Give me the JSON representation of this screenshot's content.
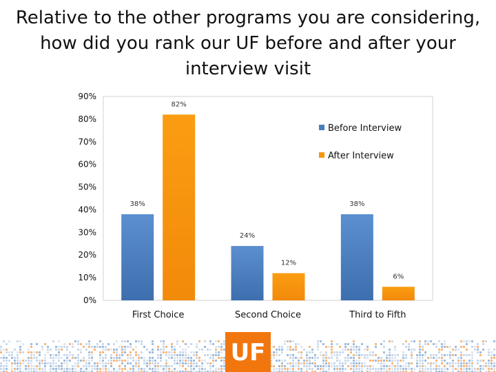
{
  "slide": {
    "title_lines": [
      "Relative to the other programs you are considering,",
      "how did you rank our UF before and after your",
      "interview visit"
    ]
  },
  "logo": {
    "text": "UF",
    "color": "#f2760e"
  },
  "chart_data": {
    "type": "bar",
    "title": "",
    "xlabel": "",
    "ylabel": "",
    "categories": [
      "First Choice",
      "Second Choice",
      "Third to Fifth"
    ],
    "series": [
      {
        "name": "Before Interview",
        "values": [
          38,
          24,
          38
        ],
        "labels": [
          "38%",
          "24%",
          "38%"
        ],
        "color": "#4a7ebb"
      },
      {
        "name": "After Interview",
        "values": [
          82,
          12,
          6
        ],
        "labels": [
          "82%",
          "12%",
          "6%"
        ],
        "color": "#f7960d"
      }
    ],
    "ylim": [
      0,
      90
    ],
    "yticks": [
      0,
      10,
      20,
      30,
      40,
      50,
      60,
      70,
      80,
      90
    ],
    "ytick_labels": [
      "0%",
      "10%",
      "20%",
      "30%",
      "40%",
      "50%",
      "60%",
      "70%",
      "80%",
      "90%"
    ],
    "grid": false,
    "legend_position": "right"
  }
}
